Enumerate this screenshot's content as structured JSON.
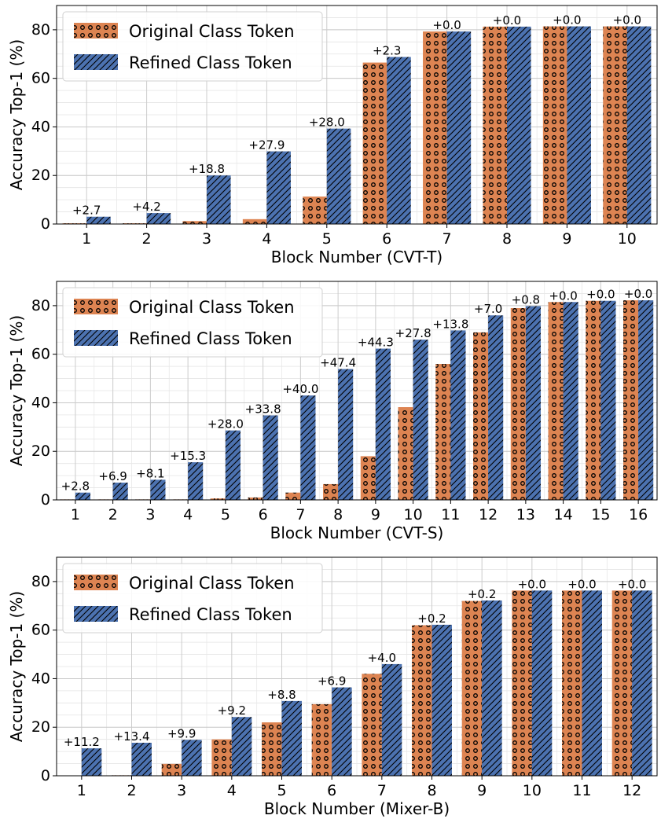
{
  "legend_labels": [
    "Original Class Token",
    "Refined Class Token"
  ],
  "colors": {
    "original": "#dd8452",
    "refined": "#4c72b0"
  },
  "chart_data": [
    {
      "type": "bar",
      "xlabel": "Block Number (CVT-T)",
      "ylabel": "Accuracy Top-1 (%)",
      "ylim": [
        0,
        90
      ],
      "yticks": [
        0,
        20,
        40,
        60,
        80
      ],
      "grid": true,
      "legend_position": "top-left",
      "categories": [
        "1",
        "2",
        "3",
        "4",
        "5",
        "6",
        "7",
        "8",
        "9",
        "10"
      ],
      "series": [
        {
          "name": "Original Class Token",
          "values": [
            0.3,
            0.3,
            1.2,
            2.0,
            11.3,
            66.5,
            79.3,
            81.3,
            81.4,
            81.4
          ]
        },
        {
          "name": "Refined Class Token",
          "values": [
            3.0,
            4.5,
            20.0,
            29.9,
            39.3,
            68.8,
            79.3,
            81.3,
            81.4,
            81.4
          ]
        }
      ],
      "annotations": [
        "+2.7",
        "+4.2",
        "+18.8",
        "+27.9",
        "+28.0",
        "+2.3",
        "+0.0",
        "+0.0",
        "+0.0",
        "+0.0"
      ]
    },
    {
      "type": "bar",
      "xlabel": "Block Number (CVT-S)",
      "ylabel": "Accuracy Top-1 (%)",
      "ylim": [
        0,
        90
      ],
      "yticks": [
        0,
        20,
        40,
        60,
        80
      ],
      "grid": true,
      "legend_position": "top-left",
      "categories": [
        "1",
        "2",
        "3",
        "4",
        "5",
        "6",
        "7",
        "8",
        "9",
        "10",
        "11",
        "12",
        "13",
        "14",
        "15",
        "16"
      ],
      "series": [
        {
          "name": "Original Class Token",
          "values": [
            0.2,
            0.2,
            0.2,
            0.2,
            0.6,
            1.0,
            3.0,
            6.5,
            18.0,
            38.2,
            56.0,
            69.0,
            79.0,
            81.5,
            82.0,
            82.2
          ]
        },
        {
          "name": "Refined Class Token",
          "values": [
            3.0,
            7.1,
            8.3,
            15.5,
            28.6,
            34.8,
            43.0,
            53.9,
            62.3,
            66.0,
            69.8,
            76.0,
            79.8,
            81.5,
            82.0,
            82.2
          ]
        }
      ],
      "annotations": [
        "+2.8",
        "+6.9",
        "+8.1",
        "+15.3",
        "+28.0",
        "+33.8",
        "+40.0",
        "+47.4",
        "+44.3",
        "+27.8",
        "+13.8",
        "+7.0",
        "+0.8",
        "+0.0",
        "+0.0",
        "+0.0"
      ]
    },
    {
      "type": "bar",
      "xlabel": "Block Number (Mixer-B)",
      "ylabel": "Accuracy Top-1 (%)",
      "ylim": [
        0,
        90
      ],
      "yticks": [
        0,
        20,
        40,
        60,
        80
      ],
      "grid": true,
      "legend_position": "top-left",
      "categories": [
        "1",
        "2",
        "3",
        "4",
        "5",
        "6",
        "7",
        "8",
        "9",
        "10",
        "11",
        "12"
      ],
      "series": [
        {
          "name": "Original Class Token",
          "values": [
            0.1,
            0.2,
            4.9,
            15.0,
            22.0,
            29.5,
            42.0,
            62.0,
            72.0,
            76.3,
            76.3,
            76.3
          ]
        },
        {
          "name": "Refined Class Token",
          "values": [
            11.3,
            13.6,
            14.8,
            24.2,
            30.8,
            36.4,
            46.0,
            62.2,
            72.2,
            76.3,
            76.3,
            76.3
          ]
        }
      ],
      "annotations": [
        "+11.2",
        "+13.4",
        "+9.9",
        "+9.2",
        "+8.8",
        "+6.9",
        "+4.0",
        "+0.2",
        "+0.2",
        "+0.0",
        "+0.0",
        "+0.0"
      ]
    }
  ]
}
